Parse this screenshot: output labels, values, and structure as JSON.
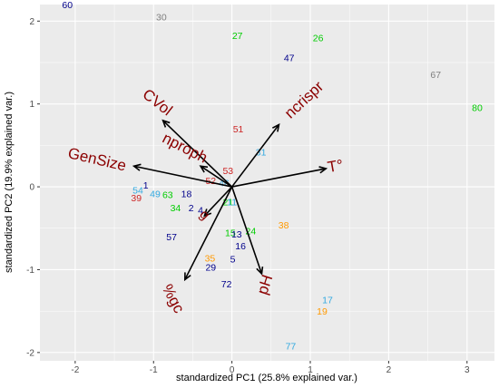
{
  "chart_data": {
    "type": "scatter",
    "subtype": "pca-biplot",
    "title": "",
    "xlabel": "standardized PC1 (25.8% explained var.)",
    "ylabel": "standardized PC2 (19.9% explained var.)",
    "xlim": [
      -2.45,
      3.35
    ],
    "ylim": [
      -2.1,
      2.2
    ],
    "x_ticks": [
      -2,
      -1,
      0,
      1,
      2,
      3
    ],
    "y_ticks": [
      -2,
      -1,
      0,
      1,
      2
    ],
    "x_tick_labels": [
      "-2",
      "-1",
      "0",
      "1",
      "2",
      "3"
    ],
    "y_tick_labels": [
      "-2",
      "-1",
      "0",
      "1",
      "2"
    ],
    "grid": true,
    "legend": "none",
    "colors": {
      "dark_blue": "#00008b",
      "grey": "#808080",
      "green": "#00cd00",
      "red": "#cd2626",
      "light_blue": "#33a9e0",
      "orange": "#ff9900",
      "arrow": "#000000",
      "variable_label": "#8b0000",
      "panel": "#ebebeb"
    },
    "points": [
      {
        "label": "60",
        "x": -2.1,
        "y": 2.2,
        "color": "#00008b"
      },
      {
        "label": "30",
        "x": -0.9,
        "y": 2.05,
        "color": "#808080"
      },
      {
        "label": "27",
        "x": 0.07,
        "y": 1.83,
        "color": "#00cd00"
      },
      {
        "label": "26",
        "x": 1.1,
        "y": 1.8,
        "color": "#00cd00"
      },
      {
        "label": "47",
        "x": 0.73,
        "y": 1.56,
        "color": "#00008b"
      },
      {
        "label": "67",
        "x": 2.6,
        "y": 1.36,
        "color": "#808080"
      },
      {
        "label": "80",
        "x": 3.13,
        "y": 0.96,
        "color": "#00cd00"
      },
      {
        "label": "51",
        "x": 0.08,
        "y": 0.7,
        "color": "#cd2626"
      },
      {
        "label": "31",
        "x": 0.37,
        "y": 0.42,
        "color": "#33a9e0"
      },
      {
        "label": "53",
        "x": -0.05,
        "y": 0.2,
        "color": "#cd2626"
      },
      {
        "label": "52",
        "x": -0.27,
        "y": 0.08,
        "color": "#cd2626"
      },
      {
        "label": "1",
        "x": -1.1,
        "y": 0.02,
        "color": "#00008b"
      },
      {
        "label": "54",
        "x": -1.2,
        "y": -0.04,
        "color": "#33a9e0"
      },
      {
        "label": "39",
        "x": -1.22,
        "y": -0.13,
        "color": "#cd2626"
      },
      {
        "label": "49",
        "x": -0.98,
        "y": -0.08,
        "color": "#33a9e0"
      },
      {
        "label": "63",
        "x": -0.82,
        "y": -0.09,
        "color": "#00cd00"
      },
      {
        "label": "18",
        "x": -0.58,
        "y": -0.08,
        "color": "#00008b"
      },
      {
        "label": "34",
        "x": -0.72,
        "y": -0.25,
        "color": "#00cd00"
      },
      {
        "label": "2",
        "x": -0.52,
        "y": -0.25,
        "color": "#00008b"
      },
      {
        "label": "4",
        "x": -0.4,
        "y": -0.28,
        "color": "#00008b"
      },
      {
        "label": "46",
        "x": -0.1,
        "y": 0.05,
        "color": "#33a9e0"
      },
      {
        "label": "21",
        "x": -0.05,
        "y": -0.18,
        "color": "#00cd00"
      },
      {
        "label": "11",
        "x": 0.0,
        "y": -0.18,
        "color": "#33a9e0"
      },
      {
        "label": "57",
        "x": -0.77,
        "y": -0.6,
        "color": "#00008b"
      },
      {
        "label": "15",
        "x": -0.02,
        "y": -0.55,
        "color": "#00cd00"
      },
      {
        "label": "13",
        "x": 0.06,
        "y": -0.57,
        "color": "#00008b"
      },
      {
        "label": "24",
        "x": 0.24,
        "y": -0.53,
        "color": "#00cd00"
      },
      {
        "label": "16",
        "x": 0.11,
        "y": -0.71,
        "color": "#00008b"
      },
      {
        "label": "38",
        "x": 0.66,
        "y": -0.46,
        "color": "#ff9900"
      },
      {
        "label": "35",
        "x": -0.28,
        "y": -0.86,
        "color": "#ff9900"
      },
      {
        "label": "5",
        "x": 0.01,
        "y": -0.87,
        "color": "#00008b"
      },
      {
        "label": "29",
        "x": -0.27,
        "y": -0.97,
        "color": "#00008b"
      },
      {
        "label": "72",
        "x": -0.07,
        "y": -1.17,
        "color": "#00008b"
      },
      {
        "label": "17",
        "x": 1.22,
        "y": -1.36,
        "color": "#33a9e0"
      },
      {
        "label": "19",
        "x": 1.15,
        "y": -1.5,
        "color": "#ff9900"
      },
      {
        "label": "77",
        "x": 0.75,
        "y": -1.92,
        "color": "#33a9e0"
      }
    ],
    "loadings": [
      {
        "name": "CVol",
        "x": -0.88,
        "y": 0.8,
        "label_x": -0.95,
        "label_y": 1.02,
        "angle": 38,
        "size": 17
      },
      {
        "name": "ncrispr",
        "x": 0.6,
        "y": 0.75,
        "label_x": 0.92,
        "label_y": 1.05,
        "angle": -43,
        "size": 17
      },
      {
        "name": "nproph",
        "x": -0.4,
        "y": 0.25,
        "label_x": -0.6,
        "label_y": 0.47,
        "angle": 27,
        "size": 17
      },
      {
        "name": "GenSize",
        "x": -1.25,
        "y": 0.25,
        "label_x": -1.72,
        "label_y": 0.33,
        "angle": 13,
        "size": 17
      },
      {
        "name": "T°",
        "x": 1.2,
        "y": 0.22,
        "label_x": 1.32,
        "label_y": 0.25,
        "angle": -10,
        "size": 17
      },
      {
        "name": "g",
        "x": -0.35,
        "y": -0.35,
        "label_x": -0.35,
        "label_y": -0.34,
        "angle": 45,
        "size": 15
      },
      {
        "name": "%gc",
        "x": -0.6,
        "y": -1.12,
        "label_x": -0.75,
        "label_y": -1.35,
        "angle": 62,
        "size": 17
      },
      {
        "name": "pH",
        "x": 0.38,
        "y": -1.05,
        "label_x": 0.42,
        "label_y": -1.18,
        "angle": -72,
        "size": 17
      }
    ]
  }
}
